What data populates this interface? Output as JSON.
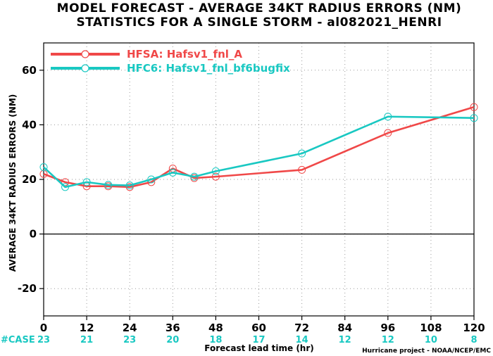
{
  "chart_data": {
    "type": "line",
    "title": [
      "MODEL FORECAST - AVERAGE 34KT RADIUS ERRORS (NM)",
      "STATISTICS FOR A SINGLE STORM - al082021_HENRI"
    ],
    "xlabel": "Forecast lead time (hr)",
    "ylabel": "AVERAGE 34KT RADIUS ERRORS (NM)",
    "xlim": [
      0,
      120
    ],
    "ylim": [
      -30,
      70
    ],
    "xticks": [
      0,
      12,
      24,
      36,
      48,
      60,
      72,
      84,
      96,
      108,
      120
    ],
    "yticks": [
      -20,
      0,
      20,
      40,
      60
    ],
    "grid": true,
    "legend_position": "top-left",
    "series": [
      {
        "name": "HFSA: Hafsv1_fnl_A",
        "color": "#f04848",
        "x": [
          0,
          6,
          12,
          18,
          24,
          30,
          36,
          42,
          48,
          72,
          96,
          120
        ],
        "y": [
          22,
          19,
          17.5,
          17.5,
          17.2,
          19,
          24,
          20.5,
          21,
          23.5,
          37,
          46.5
        ]
      },
      {
        "name": "HFC6: Hafsv1_fnl_bf6bugfix",
        "color": "#19c8c2",
        "x": [
          0,
          6,
          12,
          18,
          24,
          30,
          36,
          42,
          48,
          72,
          96,
          120
        ],
        "y": [
          24.5,
          17.2,
          19,
          18,
          17.8,
          20,
          22.5,
          21,
          23,
          29.5,
          43,
          42.5
        ]
      }
    ],
    "case_label": "#CASE",
    "cases": [
      {
        "x": 0,
        "count": "23"
      },
      {
        "x": 12,
        "count": "21"
      },
      {
        "x": 24,
        "count": "23"
      },
      {
        "x": 36,
        "count": "20"
      },
      {
        "x": 48,
        "count": "18"
      },
      {
        "x": 60,
        "count": "17"
      },
      {
        "x": 72,
        "count": "14"
      },
      {
        "x": 84,
        "count": "12"
      },
      {
        "x": 96,
        "count": "12"
      },
      {
        "x": 108,
        "count": "10"
      },
      {
        "x": 120,
        "count": "8"
      }
    ],
    "credit": "Hurricane project - NOAA/NCEP/EMC"
  }
}
